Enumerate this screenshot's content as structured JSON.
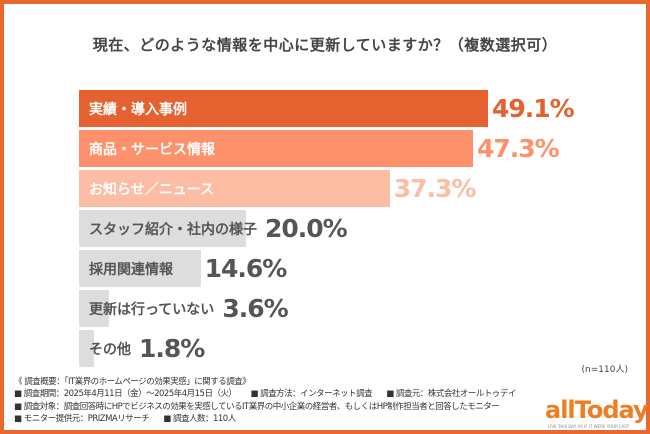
{
  "chart_data": {
    "type": "bar",
    "orientation": "horizontal",
    "title": "現在、どのような情報を中心に更新していますか？（複数選択可）",
    "categories": [
      "実績・導入事例",
      "商品・サービス情報",
      "お知らせ／ニュース",
      "スタッフ紹介・社内の様子",
      "採用関連情報",
      "更新は行っていない",
      "その他"
    ],
    "values": [
      49.1,
      47.3,
      37.3,
      20.0,
      14.6,
      3.6,
      1.8
    ],
    "value_labels": [
      "49.1%",
      "47.3%",
      "37.3%",
      "20.0%",
      "14.6%",
      "3.6%",
      "1.8%"
    ],
    "bar_colors": [
      "#e5612f",
      "#fe916b",
      "#fdbda4",
      "#dddddd",
      "#dddddd",
      "#dddddd",
      "#dddddd"
    ],
    "label_colors": [
      "#ffffff",
      "#ffffff",
      "#ffffff",
      "#555555",
      "#555555",
      "#555555",
      "#555555"
    ],
    "value_colors": [
      "#e5612f",
      "#fe916b",
      "#fdbda4",
      "#555555",
      "#555555",
      "#555555",
      "#555555"
    ],
    "note": "(n=110人)",
    "grid": false
  },
  "notes": {
    "summary": "《 調査概要：「IT業界のホームページの効果実感」に関する調査》",
    "line2": [
      "■ 調査期間：2025年4月11日（金）～2025年4月15日（火）",
      "■ 調査方法：インターネット調査",
      "■ 調査元：株式会社オールトゥデイ"
    ],
    "line3": "■ 調査対象：調査回答時にHPでビジネスの効果を実感しているIT業界の中小企業の経営者、もしくはHP制作担当者と回答したモニター",
    "line4": [
      "■ モニター提供元：PRIZMAリサーチ",
      "■ 調査人数：110人"
    ]
  },
  "logo": {
    "text": "allToday",
    "tagline": "LIVE THIS DAY AS IF IT WERE YOUR LAST"
  },
  "frame_color": "#e8682f"
}
